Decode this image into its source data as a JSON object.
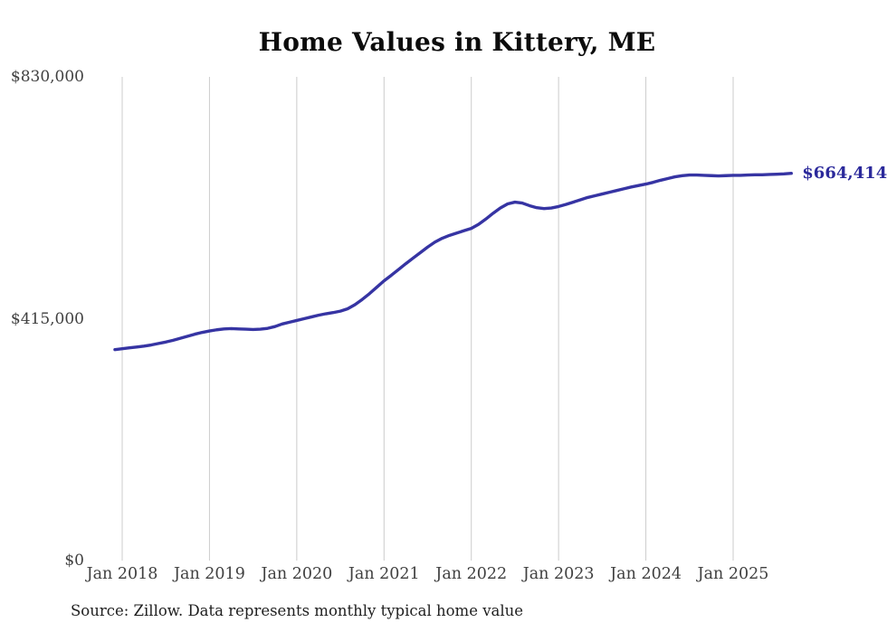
{
  "title": "Home Values in Kittery, ME",
  "source": "Source: Zillow. Data represents monthly typical home value",
  "end_label": {
    "text": "$664,414",
    "value": 664414
  },
  "colors": {
    "line": "#3634a3",
    "end_label": "#2b299b",
    "grid": "#cccccc",
    "axis_text": "#404040",
    "title_text": "#0c0c0c",
    "source_text": "#1f1f1f",
    "background": "#ffffff"
  },
  "y_axis": {
    "labels": [
      {
        "text": "$830,000",
        "value": 830000
      },
      {
        "text": "$415,000",
        "value": 415000
      },
      {
        "text": "$0",
        "value": 0
      }
    ],
    "max": 830000
  },
  "x_axis": {
    "labels": [
      "Jan 2018",
      "Jan 2019",
      "Jan 2020",
      "Jan 2021",
      "Jan 2022",
      "Jan 2023",
      "Jan 2024",
      "Jan 2025"
    ]
  },
  "chart_data": {
    "type": "line",
    "title": "Home Values in Kittery, ME",
    "series_name": "Typical home value (USD)",
    "frequency": "monthly",
    "start_month": "2017-12",
    "end_month": "2025-09",
    "xlabel": "",
    "ylabel": "",
    "ylim": [
      0,
      830000
    ],
    "grid": "vertical-only",
    "legend": "none",
    "latest_value": 664414,
    "values": [
      362000,
      363500,
      365000,
      366500,
      368000,
      370000,
      372500,
      375000,
      378000,
      381500,
      385000,
      388500,
      391500,
      394000,
      396000,
      397500,
      398000,
      397500,
      397000,
      396500,
      397000,
      398500,
      401500,
      406000,
      409000,
      412000,
      415000,
      418000,
      421000,
      423500,
      425500,
      428000,
      432000,
      439000,
      448000,
      458000,
      469000,
      480000,
      489500,
      499500,
      509500,
      519000,
      528500,
      538000,
      546500,
      553000,
      558000,
      562000,
      566000,
      570000,
      577000,
      586000,
      596000,
      605000,
      612000,
      615000,
      613500,
      609000,
      605500,
      604000,
      605000,
      607500,
      611000,
      615000,
      619000,
      623000,
      626000,
      629000,
      632000,
      635000,
      638000,
      641000,
      643500,
      646000,
      649000,
      652500,
      655500,
      658500,
      660500,
      661500,
      661500,
      661000,
      660500,
      660000,
      660500,
      661000,
      661000,
      661500,
      662000,
      662000,
      662500,
      663000,
      663500,
      664414
    ]
  }
}
